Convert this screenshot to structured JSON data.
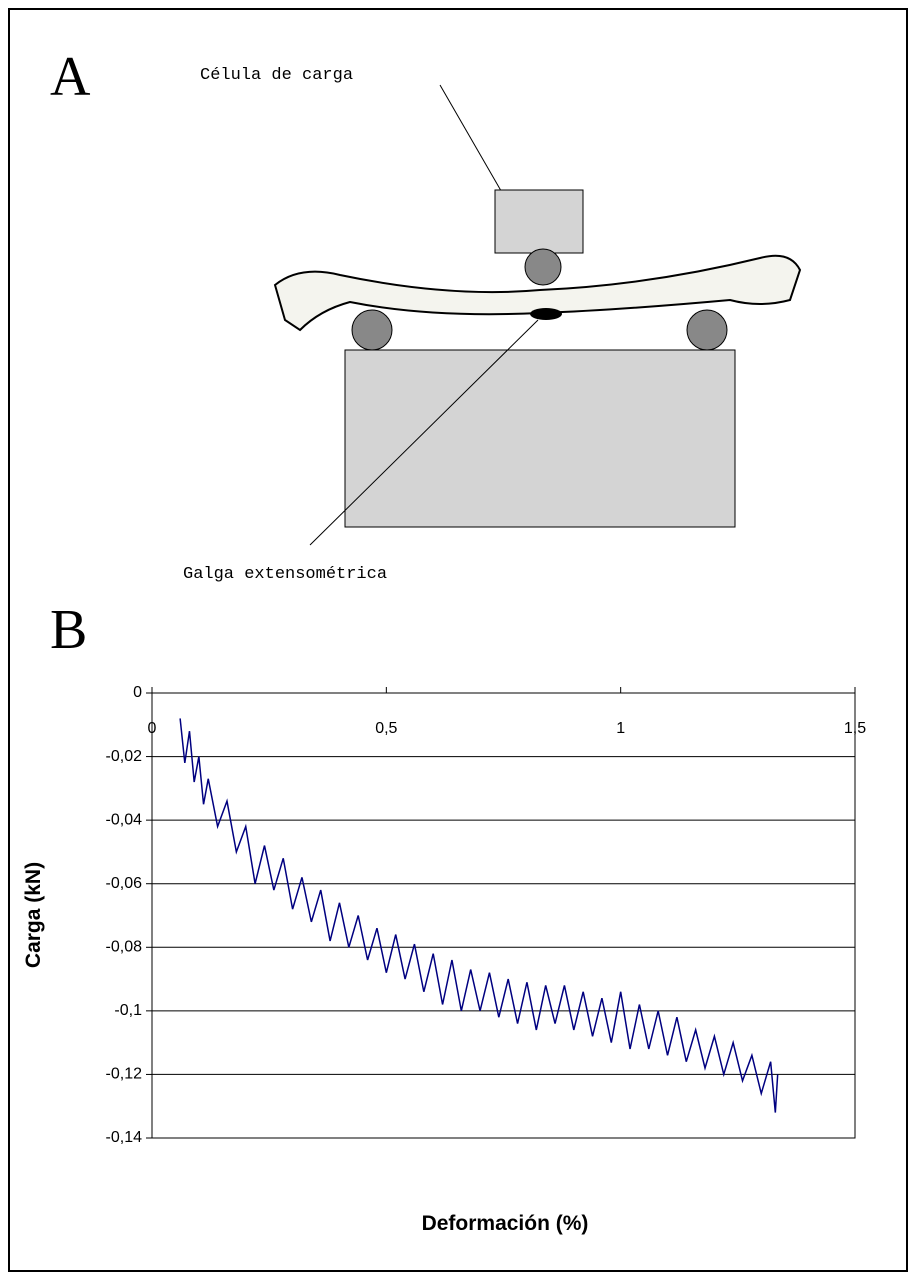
{
  "panel_a": {
    "label": "A",
    "load_cell": "Célula de carga",
    "strain_gauge": "Galga extensométrica"
  },
  "chart_data": {
    "type": "line",
    "panel_label": "B",
    "x_label": "Deformación (%)",
    "y_label": "Carga (kN)",
    "xlim": [
      0,
      1.5
    ],
    "xticks": [
      0,
      {
        "value": 0.5,
        "label": "0,5"
      },
      1,
      {
        "value": 1.5,
        "label": "1,5"
      }
    ],
    "ylim": [
      -0.14,
      0
    ],
    "yticks": [
      0,
      {
        "value": -0.02,
        "label": "-0,02"
      },
      {
        "value": -0.04,
        "label": "-0,04"
      },
      {
        "value": -0.06,
        "label": "-0,06"
      },
      {
        "value": -0.08,
        "label": "-0,08"
      },
      {
        "value": -0.1,
        "label": "-0,1"
      },
      {
        "value": -0.12,
        "label": "-0,12"
      },
      {
        "value": -0.14,
        "label": "-0,14"
      }
    ],
    "grid": true,
    "series": [
      {
        "color": "#000080",
        "x": [
          0.06,
          0.07,
          0.08,
          0.09,
          0.1,
          0.11,
          0.12,
          0.14,
          0.16,
          0.18,
          0.2,
          0.22,
          0.24,
          0.26,
          0.28,
          0.3,
          0.32,
          0.34,
          0.36,
          0.38,
          0.4,
          0.42,
          0.44,
          0.46,
          0.48,
          0.5,
          0.52,
          0.54,
          0.56,
          0.58,
          0.6,
          0.62,
          0.64,
          0.66,
          0.68,
          0.7,
          0.72,
          0.74,
          0.76,
          0.78,
          0.8,
          0.82,
          0.84,
          0.86,
          0.88,
          0.9,
          0.92,
          0.94,
          0.96,
          0.98,
          1.0,
          1.02,
          1.04,
          1.06,
          1.08,
          1.1,
          1.12,
          1.14,
          1.16,
          1.18,
          1.2,
          1.22,
          1.24,
          1.26,
          1.28,
          1.3,
          1.32,
          1.33,
          1.335
        ],
        "values": [
          -0.008,
          -0.022,
          -0.012,
          -0.028,
          -0.02,
          -0.035,
          -0.027,
          -0.042,
          -0.034,
          -0.05,
          -0.042,
          -0.06,
          -0.048,
          -0.062,
          -0.052,
          -0.068,
          -0.058,
          -0.072,
          -0.062,
          -0.078,
          -0.066,
          -0.08,
          -0.07,
          -0.084,
          -0.074,
          -0.088,
          -0.076,
          -0.09,
          -0.079,
          -0.094,
          -0.082,
          -0.098,
          -0.084,
          -0.1,
          -0.087,
          -0.1,
          -0.088,
          -0.102,
          -0.09,
          -0.104,
          -0.091,
          -0.106,
          -0.092,
          -0.104,
          -0.092,
          -0.106,
          -0.094,
          -0.108,
          -0.096,
          -0.11,
          -0.094,
          -0.112,
          -0.098,
          -0.112,
          -0.1,
          -0.114,
          -0.102,
          -0.116,
          -0.106,
          -0.118,
          -0.108,
          -0.12,
          -0.11,
          -0.122,
          -0.114,
          -0.126,
          -0.116,
          -0.132,
          -0.12
        ]
      }
    ]
  }
}
